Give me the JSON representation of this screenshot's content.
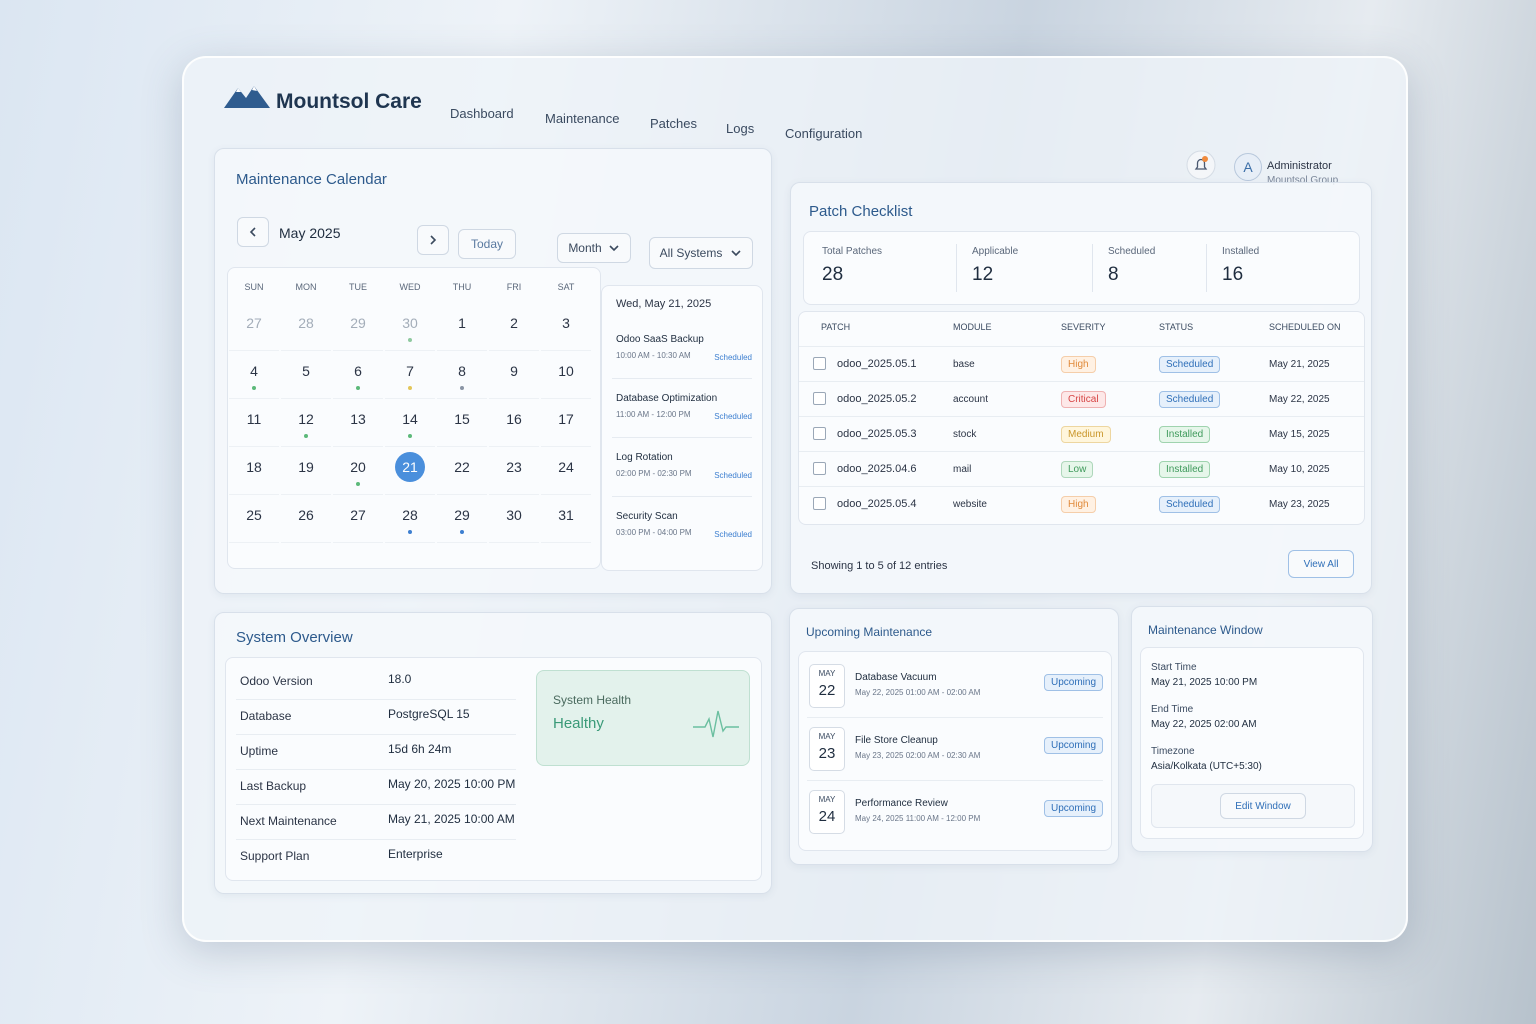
{
  "header": {
    "brand": "Mountsol Care",
    "nav": [
      "Dashboard",
      "Maintenance",
      "Patches",
      "Logs",
      "Configuration"
    ]
  },
  "user": {
    "initial": "A",
    "name": "Administrator",
    "org": "Mountsol Group"
  },
  "calendar": {
    "title": "Maintenance Calendar",
    "month": "May 2025",
    "today": "Today",
    "view": "Month",
    "filter": "All Systems",
    "weekdays": [
      "SUN",
      "MON",
      "TUE",
      "WED",
      "THU",
      "FRI",
      "SAT"
    ],
    "weeks": [
      [
        "27",
        "28",
        "29",
        "30",
        "1",
        "2",
        "3"
      ],
      [
        "4",
        "5",
        "6",
        "7",
        "8",
        "9",
        "10"
      ],
      [
        "11",
        "12",
        "13",
        "14",
        "15",
        "16",
        "17"
      ],
      [
        "18",
        "19",
        "20",
        "21",
        "22",
        "23",
        "24"
      ],
      [
        "25",
        "26",
        "27",
        "28",
        "29",
        "30",
        "31"
      ]
    ],
    "selected_date": "Wed, May 21, 2025",
    "events": [
      {
        "name": "Odoo SaaS Backup",
        "time": "10:00 AM - 10:30 AM",
        "status": "Scheduled"
      },
      {
        "name": "Database Optimization",
        "time": "11:00 AM - 12:00 PM",
        "status": "Scheduled"
      },
      {
        "name": "Log Rotation",
        "time": "02:00 PM - 02:30 PM",
        "status": "Scheduled"
      },
      {
        "name": "Security Scan",
        "time": "03:00 PM - 04:00 PM",
        "status": "Scheduled"
      }
    ]
  },
  "patches": {
    "title": "Patch Checklist",
    "stats": [
      {
        "label": "Total Patches",
        "value": "28"
      },
      {
        "label": "Applicable",
        "value": "12"
      },
      {
        "label": "Scheduled",
        "value": "8"
      },
      {
        "label": "Installed",
        "value": "16"
      }
    ],
    "columns": [
      "PATCH",
      "MODULE",
      "SEVERITY",
      "STATUS",
      "SCHEDULED ON"
    ],
    "rows": [
      [
        "odoo_2025.05.1",
        "base",
        "High",
        "Scheduled",
        "May 21, 2025"
      ],
      [
        "odoo_2025.05.2",
        "account",
        "Critical",
        "Scheduled",
        "May 22, 2025"
      ],
      [
        "odoo_2025.05.3",
        "stock",
        "Medium",
        "Installed",
        "May 15, 2025"
      ],
      [
        "odoo_2025.04.6",
        "mail",
        "Low",
        "Installed",
        "May 10, 2025"
      ],
      [
        "odoo_2025.05.4",
        "website",
        "High",
        "Scheduled",
        "May 23, 2025"
      ]
    ],
    "footer": "Showing 1 to 5 of 12 entries",
    "button": "View All"
  },
  "overview": {
    "title": "System Overview",
    "rows": [
      [
        "Odoo Version",
        "18.0"
      ],
      [
        "Database",
        "PostgreSQL 15"
      ],
      [
        "Uptime",
        "15d 6h 24m"
      ],
      [
        "Last Backup",
        "May 20, 2025 10:00 PM"
      ],
      [
        "Next Maintenance",
        "May 21, 2025 10:00 AM"
      ],
      [
        "Support Plan",
        "Enterprise"
      ]
    ],
    "health_label": "System Health",
    "health_status": "Healthy"
  },
  "upcoming": {
    "title": "Upcoming Maintenance",
    "items": [
      {
        "month": "MAY",
        "day": "22",
        "title": "Database Vacuum",
        "time": "May 22, 2025 01:00 AM - 02:00 AM",
        "status": "Upcoming"
      },
      {
        "month": "MAY",
        "day": "23",
        "title": "File Store Cleanup",
        "time": "May 23, 2025 02:00 AM - 02:30 AM",
        "status": "Upcoming"
      },
      {
        "month": "MAY",
        "day": "24",
        "title": "Performance Review",
        "time": "May 24, 2025 11:00 AM - 12:00 PM",
        "status": "Upcoming"
      }
    ]
  },
  "window": {
    "title": "Maintenance Window",
    "fields": [
      {
        "label": "Start Time",
        "value": "May 21, 2025 10:00 PM"
      },
      {
        "label": "End Time",
        "value": "May 22, 2025 02:00 AM"
      },
      {
        "label": "Timezone",
        "value": "Asia/Kolkata (UTC+5:30)"
      }
    ],
    "button": "Edit Window"
  }
}
